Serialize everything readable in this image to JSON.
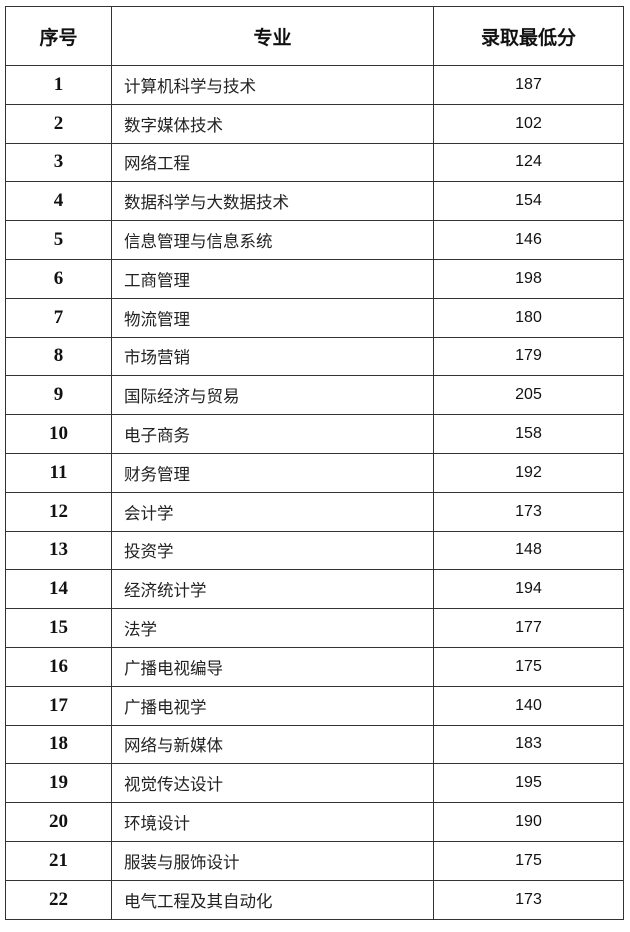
{
  "table": {
    "headers": [
      "序号",
      "专业",
      "录取最低分"
    ],
    "rows": [
      [
        "1",
        "计算机科学与技术",
        "187"
      ],
      [
        "2",
        "数字媒体技术",
        "102"
      ],
      [
        "3",
        "网络工程",
        "124"
      ],
      [
        "4",
        "数据科学与大数据技术",
        "154"
      ],
      [
        "5",
        "信息管理与信息系统",
        "146"
      ],
      [
        "6",
        "工商管理",
        "198"
      ],
      [
        "7",
        "物流管理",
        "180"
      ],
      [
        "8",
        "市场营销",
        "179"
      ],
      [
        "9",
        "国际经济与贸易",
        "205"
      ],
      [
        "10",
        "电子商务",
        "158"
      ],
      [
        "11",
        "财务管理",
        "192"
      ],
      [
        "12",
        "会计学",
        "173"
      ],
      [
        "13",
        "投资学",
        "148"
      ],
      [
        "14",
        "经济统计学",
        "194"
      ],
      [
        "15",
        "法学",
        "177"
      ],
      [
        "16",
        "广播电视编导",
        "175"
      ],
      [
        "17",
        "广播电视学",
        "140"
      ],
      [
        "18",
        "网络与新媒体",
        "183"
      ],
      [
        "19",
        "视觉传达设计",
        "195"
      ],
      [
        "20",
        "环境设计",
        "190"
      ],
      [
        "21",
        "服装与服饰设计",
        "175"
      ],
      [
        "22",
        "电气工程及其自动化",
        "173"
      ]
    ]
  }
}
